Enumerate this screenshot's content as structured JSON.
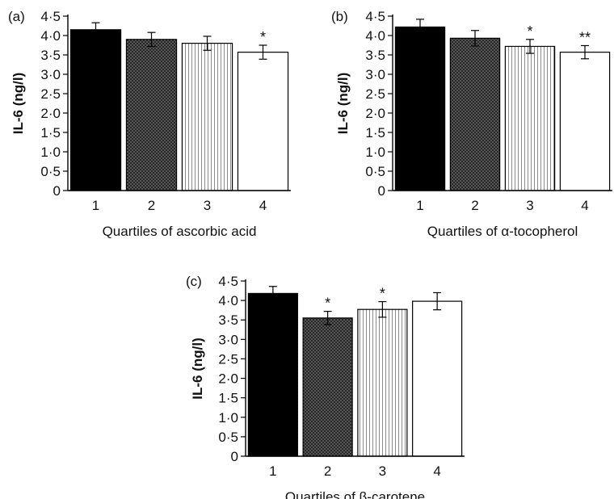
{
  "chart_data": [
    {
      "type": "bar",
      "panel_label": "(a)",
      "categories": [
        "1",
        "2",
        "3",
        "4"
      ],
      "values": [
        4.15,
        3.9,
        3.8,
        3.57
      ],
      "error": [
        0.18,
        0.18,
        0.18,
        0.18
      ],
      "significance": [
        "",
        "",
        "",
        "*"
      ],
      "ylabel": "IL-6 (ng/l)",
      "xlabel": "Quartiles of ascorbic acid",
      "ylim": [
        0,
        4.5
      ],
      "yticks": [
        "0",
        "0·5",
        "1·0",
        "1·5",
        "2·0",
        "2·5",
        "3·0",
        "3·5",
        "4·0",
        "4·5"
      ],
      "bar_styles": [
        "solid-black",
        "dark-crosshatch",
        "vertical-lines",
        "white"
      ]
    },
    {
      "type": "bar",
      "panel_label": "(b)",
      "categories": [
        "1",
        "2",
        "3",
        "4"
      ],
      "values": [
        4.22,
        3.93,
        3.72,
        3.57
      ],
      "error": [
        0.2,
        0.2,
        0.18,
        0.17
      ],
      "significance": [
        "",
        "",
        "*",
        "**"
      ],
      "ylabel": "IL-6 (ng/l)",
      "xlabel": "Quartiles of α-tocopherol",
      "ylim": [
        0,
        4.5
      ],
      "yticks": [
        "0",
        "0·5",
        "1·0",
        "1·5",
        "2·0",
        "2·5",
        "3·0",
        "3·5",
        "4·0",
        "4·5"
      ],
      "bar_styles": [
        "solid-black",
        "dark-crosshatch",
        "vertical-lines",
        "white"
      ]
    },
    {
      "type": "bar",
      "panel_label": "(c)",
      "categories": [
        "1",
        "2",
        "3",
        "4"
      ],
      "values": [
        4.18,
        3.55,
        3.77,
        3.98
      ],
      "error": [
        0.18,
        0.17,
        0.2,
        0.22
      ],
      "significance": [
        "",
        "*",
        "*",
        ""
      ],
      "ylabel": "IL-6 (ng/l)",
      "xlabel": "Quartiles of β-carotene",
      "ylim": [
        0,
        4.5
      ],
      "yticks": [
        "0",
        "0·5",
        "1·0",
        "1·5",
        "2·0",
        "2·5",
        "3·0",
        "3·5",
        "4·0",
        "4·5"
      ],
      "bar_styles": [
        "solid-black",
        "dark-crosshatch",
        "vertical-lines",
        "white"
      ]
    }
  ]
}
